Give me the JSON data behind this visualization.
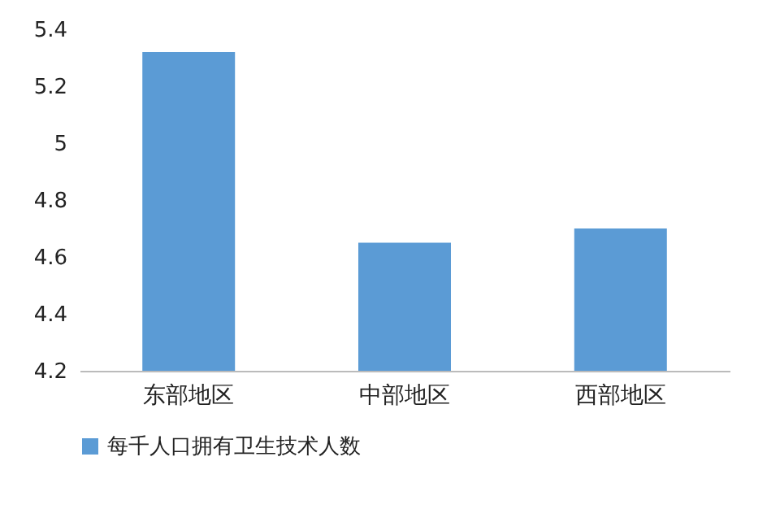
{
  "chart_data": {
    "type": "bar",
    "categories": [
      "东部地区",
      "中部地区",
      "西部地区"
    ],
    "series": [
      {
        "name": "每千人口拥有卫生技术人数",
        "color": "#5b9bd5",
        "values": [
          5.32,
          4.65,
          4.7
        ]
      }
    ],
    "ylim": [
      4.2,
      5.4
    ],
    "yticks": [
      4.2,
      4.4,
      4.6,
      4.8,
      5,
      5.2,
      5.4
    ],
    "grid": false,
    "legend": "bottom"
  }
}
